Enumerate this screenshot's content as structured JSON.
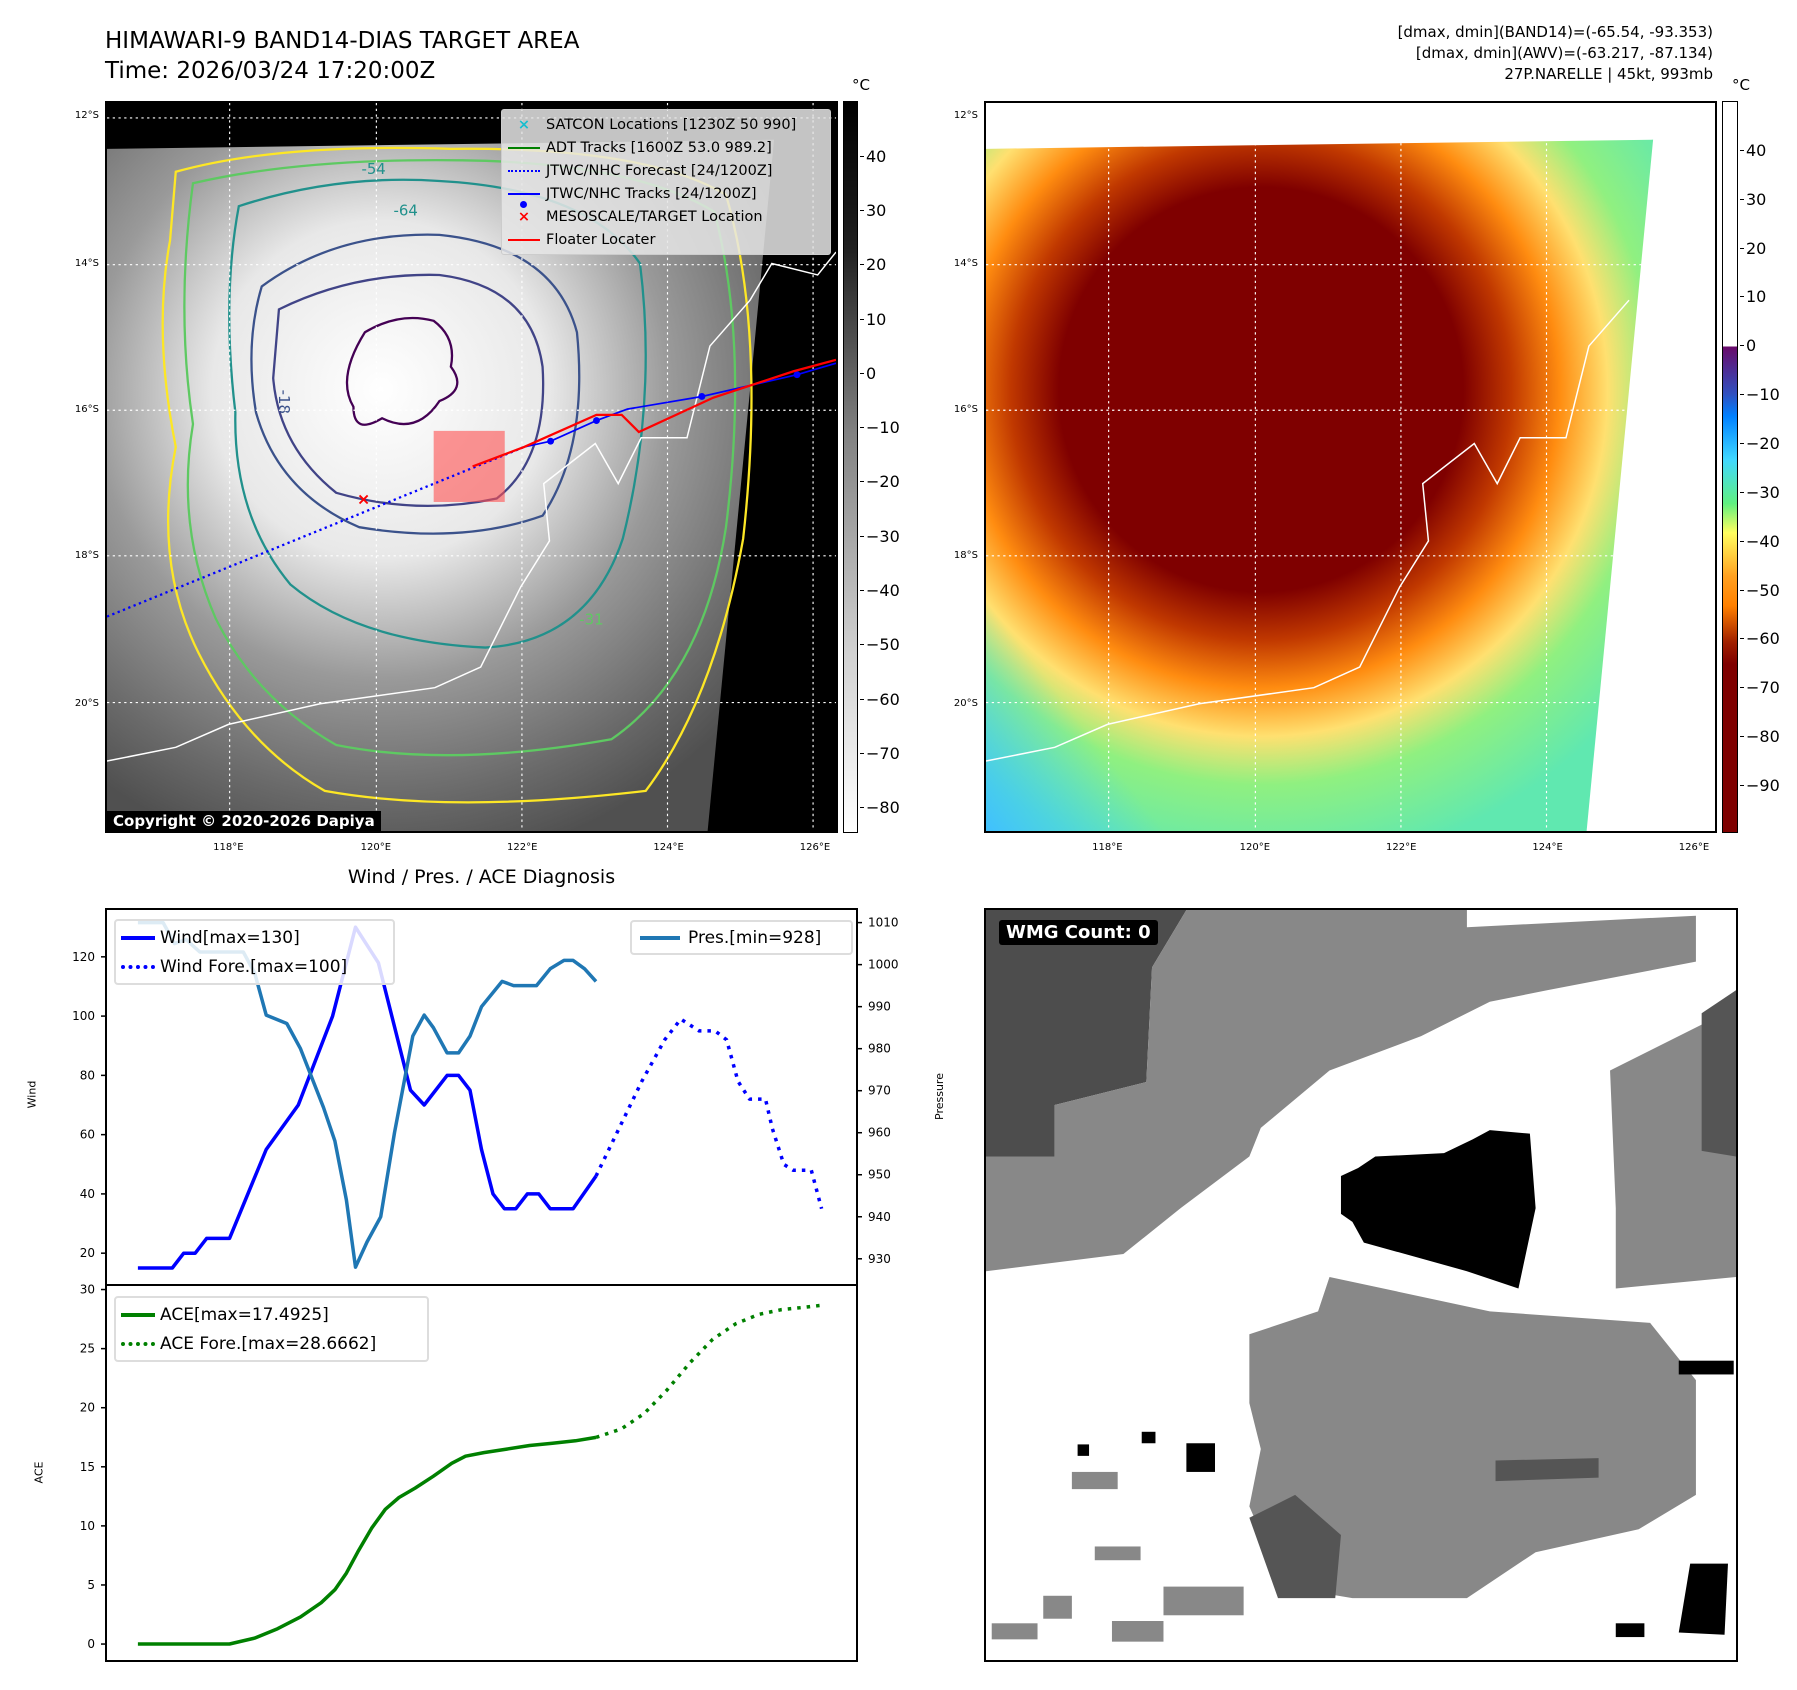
{
  "header": {
    "title": "HIMAWARI-9 BAND14-DIAS TARGET AREA",
    "time": "Time: 2026/03/24 17:20:00Z"
  },
  "info": {
    "line1": "[dmax, dmin](BAND14)=(-65.54, -93.353)",
    "line2": "[dmax, dmin](AWV)=(-63.217, -87.134)",
    "line3": "27P.NARELLE | 45kt, 993mb"
  },
  "map": {
    "lat_ticks": [
      "12°S",
      "14°S",
      "16°S",
      "18°S",
      "20°S"
    ],
    "lon_ticks": [
      "118°E",
      "120°E",
      "122°E",
      "124°E",
      "126°E"
    ],
    "contour_labels": [
      "-54",
      "-64",
      "-31",
      "-18"
    ],
    "legend": [
      {
        "label": "SATCON Locations [1230Z 50 990]",
        "icon": "x-marker-icon",
        "color": "#17becf"
      },
      {
        "label": "ADT Tracks [1600Z 53.0 989.2]",
        "icon": "line-icon",
        "color": "#008000"
      },
      {
        "label": "JTWC/NHC Forecast [24/1200Z]",
        "icon": "dotted-line-icon",
        "color": "#0000ff"
      },
      {
        "label": "JTWC/NHC Tracks [24/1200Z]",
        "icon": "line-dot-icon",
        "color": "#0000ff"
      },
      {
        "label": "MESOSCALE/TARGET Location",
        "icon": "x-marker-icon",
        "color": "#ff0000"
      },
      {
        "label": "Floater Locater",
        "icon": "line-icon",
        "color": "#ff0000"
      }
    ],
    "copyright": "Copyright © 2020-2026 Dapiya"
  },
  "colorbar1": {
    "unit": "°C",
    "ticks": [
      "40",
      "30",
      "20",
      "10",
      "0",
      "−10",
      "−20",
      "−30",
      "−40",
      "−50",
      "−60",
      "−70",
      "−80"
    ],
    "range": [
      50.3,
      -84.6
    ]
  },
  "colorbar2": {
    "unit": "°C",
    "ticks": [
      "40",
      "30",
      "20",
      "10",
      "0",
      "−10",
      "−20",
      "−30",
      "−40",
      "−50",
      "−60",
      "−70",
      "−80",
      "−90"
    ],
    "range": [
      50.2,
      -99.6
    ]
  },
  "wmg": {
    "label": "WMG Count: 0"
  },
  "chart_data": [
    {
      "type": "line",
      "title": "Wind / Pres. / ACE Diagnosis",
      "xlim": [
        -2.7,
        62.7
      ],
      "ylabel": "Wind",
      "ylim": [
        9.6,
        135.8
      ],
      "yticks": [
        20,
        40,
        60,
        80,
        100,
        120
      ],
      "y2label": "Pressure",
      "y2lim": [
        924,
        1013
      ],
      "y2ticks": [
        930,
        940,
        950,
        960,
        970,
        980,
        990,
        1000,
        1010
      ],
      "series": [
        {
          "name": "Wind[max=130]",
          "axis": "left",
          "color": "#0000ff",
          "style": "solid",
          "points": [
            [
              0,
              15
            ],
            [
              3,
              15
            ],
            [
              4,
              20
            ],
            [
              5,
              20
            ],
            [
              6,
              25
            ],
            [
              8,
              25
            ],
            [
              11.2,
              55
            ],
            [
              14,
              70
            ],
            [
              17,
              100
            ],
            [
              19,
              130
            ],
            [
              21,
              118
            ],
            [
              23.8,
              75
            ],
            [
              25,
              70
            ],
            [
              27,
              80
            ],
            [
              28,
              80
            ],
            [
              29,
              75
            ],
            [
              30,
              55
            ],
            [
              31,
              40
            ],
            [
              32,
              35
            ],
            [
              33,
              35
            ],
            [
              34,
              40
            ],
            [
              35,
              40
            ],
            [
              36,
              35
            ],
            [
              38,
              35
            ],
            [
              40,
              46
            ]
          ]
        },
        {
          "name": "Wind Fore.[max=100]",
          "axis": "left",
          "color": "#0000ff",
          "style": "dotted",
          "points": [
            [
              40,
              46
            ],
            [
              42,
              62
            ],
            [
              44,
              78
            ],
            [
              46,
              92
            ],
            [
              47.4,
              99
            ],
            [
              48.2,
              97
            ],
            [
              49,
              95
            ],
            [
              50.4,
              95
            ],
            [
              51.4,
              92
            ],
            [
              52.4,
              78
            ],
            [
              53.4,
              72
            ],
            [
              54.8,
              72
            ],
            [
              55.4,
              62
            ],
            [
              56.4,
              50
            ],
            [
              57.2,
              48
            ],
            [
              58.8,
              48
            ],
            [
              59.7,
              35
            ]
          ]
        },
        {
          "name": "Pres.[min=928]",
          "axis": "right",
          "color": "#1f77b4",
          "style": "solid",
          "points": [
            [
              0,
              1010
            ],
            [
              2.2,
              1010
            ],
            [
              3.2,
              1005
            ],
            [
              4.2,
              1006
            ],
            [
              5.4,
              1003
            ],
            [
              7.2,
              1003
            ],
            [
              9.2,
              1003
            ],
            [
              10.2,
              998
            ],
            [
              11.2,
              988
            ],
            [
              13,
              986
            ],
            [
              14.2,
              980
            ],
            [
              16.2,
              966
            ],
            [
              17.2,
              958
            ],
            [
              18.2,
              944
            ],
            [
              19,
              928
            ],
            [
              20,
              934
            ],
            [
              21.2,
              940
            ],
            [
              22.4,
              960
            ],
            [
              24,
              983
            ],
            [
              25,
              988
            ],
            [
              25.8,
              985
            ],
            [
              27,
              979
            ],
            [
              28,
              979
            ],
            [
              29,
              983
            ],
            [
              30,
              990
            ],
            [
              31.8,
              996
            ],
            [
              32.8,
              995
            ],
            [
              34.8,
              995
            ],
            [
              36,
              999
            ],
            [
              37.2,
              1001
            ],
            [
              38,
              1001
            ],
            [
              39,
              999
            ],
            [
              40,
              996
            ]
          ]
        }
      ]
    },
    {
      "type": "line",
      "xlim": [
        -2.7,
        62.7
      ],
      "ylabel": "ACE",
      "ylim": [
        -1.35,
        30.3
      ],
      "yticks": [
        0,
        5,
        10,
        15,
        20,
        25,
        30
      ],
      "series": [
        {
          "name": "ACE[max=17.4925]",
          "color": "#008000",
          "style": "solid",
          "points": [
            [
              0,
              0
            ],
            [
              8,
              0
            ],
            [
              10.2,
              0.5
            ],
            [
              12.2,
              1.3
            ],
            [
              14.2,
              2.3
            ],
            [
              16,
              3.5
            ],
            [
              17.2,
              4.6
            ],
            [
              18.2,
              6
            ],
            [
              19.2,
              7.8
            ],
            [
              20.4,
              9.8
            ],
            [
              21.6,
              11.4
            ],
            [
              22.8,
              12.4
            ],
            [
              24.2,
              13.2
            ],
            [
              25.8,
              14.2
            ],
            [
              27.4,
              15.3
            ],
            [
              28.6,
              15.9
            ],
            [
              30.2,
              16.2
            ],
            [
              32.2,
              16.5
            ],
            [
              34.2,
              16.8
            ],
            [
              36.2,
              17.0
            ],
            [
              38.2,
              17.2
            ],
            [
              40,
              17.49
            ]
          ]
        },
        {
          "name": "ACE Fore.[max=28.6662]",
          "color": "#008000",
          "style": "dotted",
          "points": [
            [
              40,
              17.49
            ],
            [
              42.2,
              18.2
            ],
            [
              44.2,
              19.5
            ],
            [
              46.2,
              21.5
            ],
            [
              48.2,
              23.8
            ],
            [
              50.2,
              25.8
            ],
            [
              52.2,
              27.1
            ],
            [
              54.2,
              27.9
            ],
            [
              56.2,
              28.3
            ],
            [
              58.2,
              28.5
            ],
            [
              59.7,
              28.67
            ]
          ]
        }
      ]
    }
  ]
}
